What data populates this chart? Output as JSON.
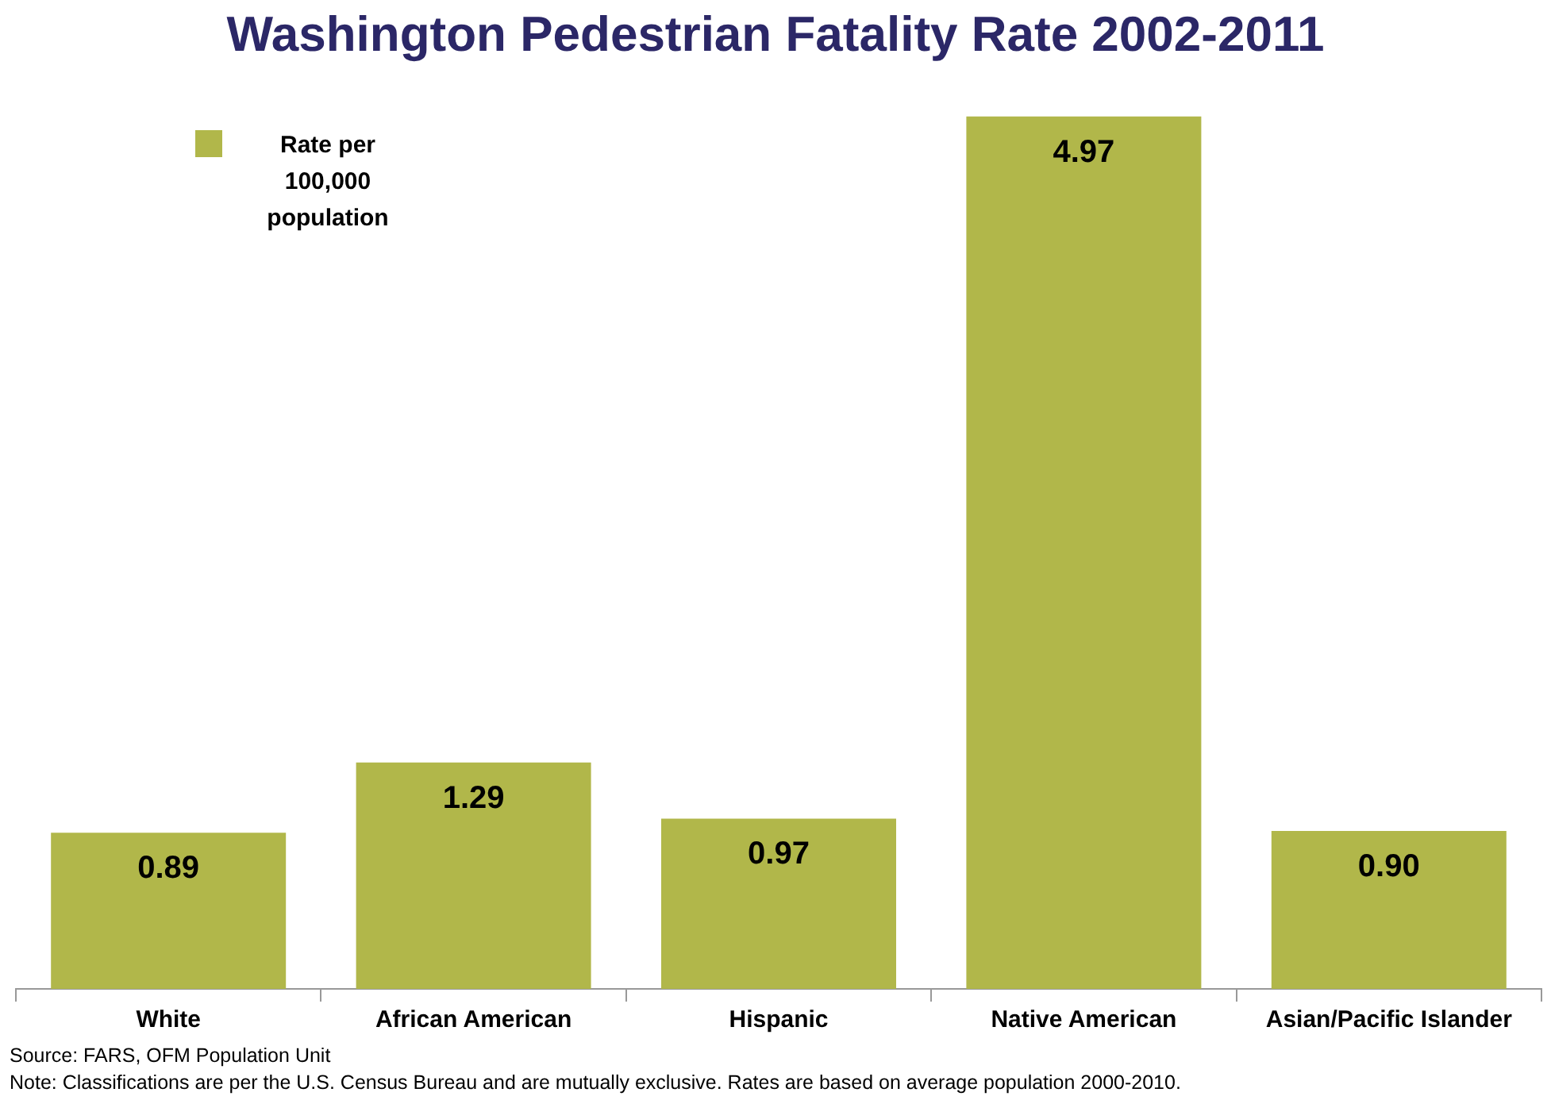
{
  "chart_data": {
    "type": "bar",
    "title": "Washington Pedestrian Fatality Rate 2002-2011",
    "categories": [
      "White",
      "African American",
      "Hispanic",
      "Native American",
      "Asian/Pacific Islander"
    ],
    "series": [
      {
        "name": "Rate per 100,000 population",
        "color": "#b1b74a",
        "values": [
          0.89,
          1.29,
          0.97,
          4.97,
          0.9
        ],
        "value_labels": [
          "0.89",
          "1.29",
          "0.97",
          "4.97",
          "0.90"
        ]
      }
    ],
    "data_labels": true,
    "legend": "top left",
    "annotations": [
      "Source: FARS, OFM Population Unit",
      "Note: Classifications are per the U.S. Census Bureau and are mutually exclusive. Rates are based on average population 2000-2010."
    ]
  }
}
